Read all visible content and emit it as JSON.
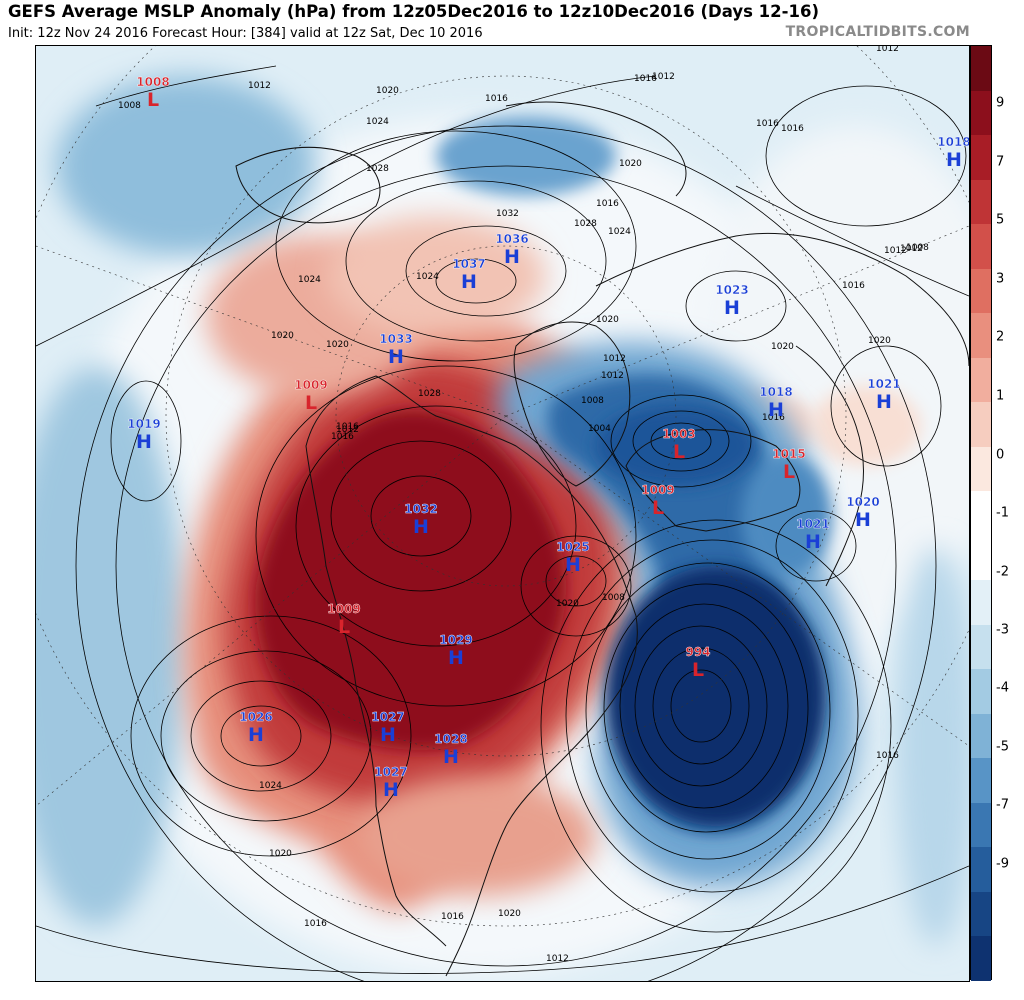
{
  "header": {
    "title": "GEFS Average MSLP Anomaly (hPa) from 12z05Dec2016 to 12z10Dec2016 (Days 12-16)",
    "subtitle": "Init: 12z Nov 24 2016   Forecast Hour: [384]   valid at 12z Sat, Dec 10 2016",
    "brand": "TROPICALTIDBITS.COM"
  },
  "colors": {
    "high_label": "#1a3fd6",
    "low_label": "#d8242c",
    "contour": "#000000",
    "anomaly_strong_positive": "#7a0a1a",
    "anomaly_strong_negative": "#0b2f6b"
  },
  "colorbar": {
    "unit": "hPa",
    "ticks": [
      "9",
      "7",
      "5",
      "3",
      "2",
      "1",
      "0",
      "-1",
      "-2",
      "-3",
      "-4",
      "-5",
      "-7",
      "-9"
    ],
    "bins": [
      {
        "upper": "10",
        "color": "#6b0a14"
      },
      {
        "upper": "9",
        "color": "#8c0f1c"
      },
      {
        "upper": "8",
        "color": "#a81d26"
      },
      {
        "upper": "7",
        "color": "#bf3436"
      },
      {
        "upper": "6",
        "color": "#d2504a"
      },
      {
        "upper": "5",
        "color": "#df6f61"
      },
      {
        "upper": "4",
        "color": "#e98f7e"
      },
      {
        "upper": "3",
        "color": "#f1ae9e"
      },
      {
        "upper": "2",
        "color": "#f6cdbf"
      },
      {
        "upper": "1",
        "color": "#fbe8df"
      },
      {
        "upper": "0",
        "color": "#ffffff"
      },
      {
        "upper": "-0.5",
        "color": "#ffffff"
      },
      {
        "upper": "-1",
        "color": "#e3f0f7"
      },
      {
        "upper": "-2",
        "color": "#c6e0ee"
      },
      {
        "upper": "-3",
        "color": "#a3cbe3"
      },
      {
        "upper": "-4",
        "color": "#7fb2d6"
      },
      {
        "upper": "-5",
        "color": "#5894c6"
      },
      {
        "upper": "-6",
        "color": "#3a77b2"
      },
      {
        "upper": "-7",
        "color": "#255d9c"
      },
      {
        "upper": "-8",
        "color": "#174584"
      },
      {
        "upper": "-9",
        "color": "#0e3270"
      }
    ]
  },
  "pressure_centers": [
    {
      "type": "L",
      "value": "1008"
    },
    {
      "type": "H",
      "value": "1037"
    },
    {
      "type": "H",
      "value": "1036"
    },
    {
      "type": "H",
      "value": "1033"
    },
    {
      "type": "L",
      "value": "1009"
    },
    {
      "type": "H",
      "value": "1019"
    },
    {
      "type": "H",
      "value": "1032"
    },
    {
      "type": "H",
      "value": "1025"
    },
    {
      "type": "L",
      "value": "1009"
    },
    {
      "type": "H",
      "value": "1029"
    },
    {
      "type": "H",
      "value": "1026"
    },
    {
      "type": "H",
      "value": "1027"
    },
    {
      "type": "H",
      "value": "1028"
    },
    {
      "type": "H",
      "value": "1027"
    },
    {
      "type": "L",
      "value": "994"
    },
    {
      "type": "L",
      "value": "1003"
    },
    {
      "type": "L",
      "value": "1009"
    },
    {
      "type": "H",
      "value": "1023"
    },
    {
      "type": "H",
      "value": "1018"
    },
    {
      "type": "L",
      "value": "1015"
    },
    {
      "type": "H",
      "value": "1021"
    },
    {
      "type": "H",
      "value": "1021"
    },
    {
      "type": "H",
      "value": "1020"
    },
    {
      "type": "H",
      "value": "1018"
    }
  ],
  "isobar_labels": [
    "1008",
    "1012",
    "1020",
    "1016",
    "1024",
    "1028",
    "1032",
    "1016",
    "1012",
    "1020",
    "1016",
    "1024",
    "1028",
    "1020",
    "1012",
    "1008",
    "1004",
    "1012",
    "1016",
    "1020",
    "1012",
    "1008",
    "1016",
    "1020",
    "1024",
    "1024",
    "1020",
    "1016",
    "1016",
    "1016",
    "1012",
    "1012",
    "1028",
    "1020",
    "1012",
    "1008",
    "1024",
    "1020",
    "1016",
    "1016",
    "1012",
    "1016",
    "1020",
    "1020",
    "1016"
  ]
}
